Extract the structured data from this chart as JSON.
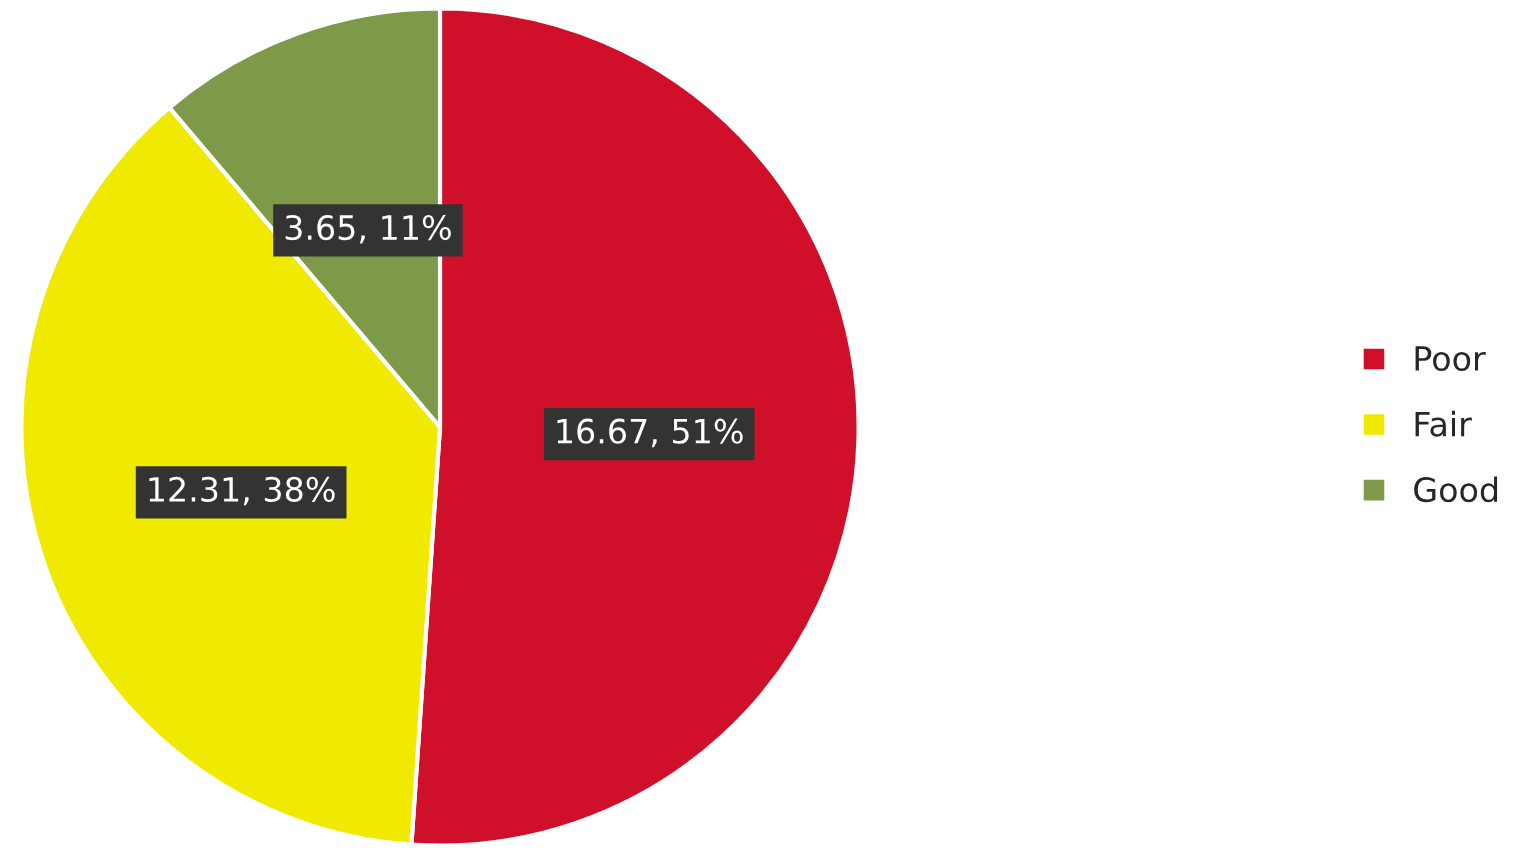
{
  "chart_data": {
    "type": "pie",
    "categories": [
      "Poor",
      "Fair",
      "Good"
    ],
    "values": [
      16.67,
      12.31,
      3.65
    ],
    "colors": [
      "#d0102a",
      "#f0ea00",
      "#7e9a48"
    ],
    "value_labels": [
      "16.67, 51%",
      "12.31, 38%",
      "3.65, 11%"
    ],
    "legend": "right"
  }
}
